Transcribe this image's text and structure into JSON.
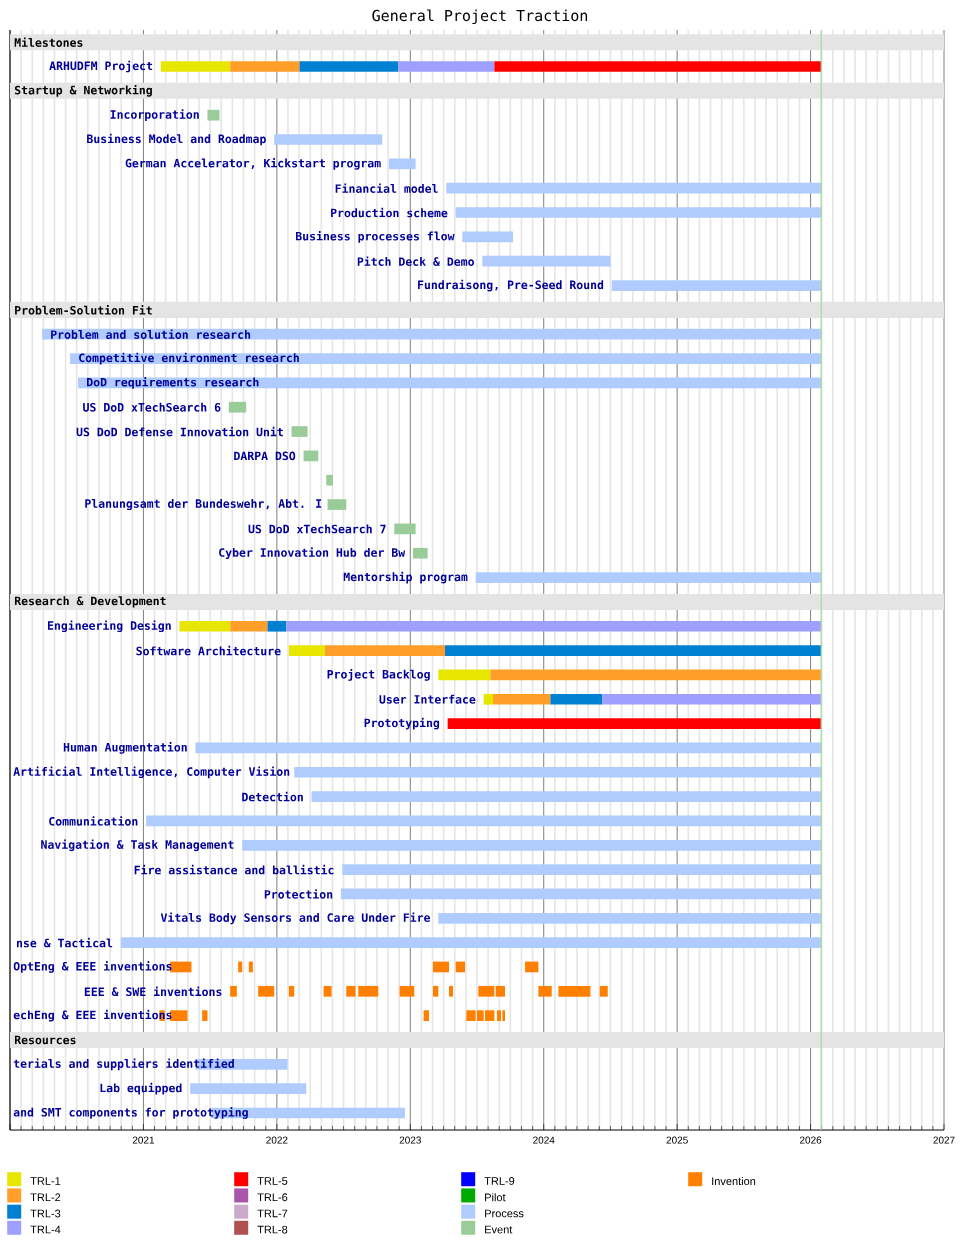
{
  "chart_data": {
    "type": "bar",
    "orientation": "horizontal",
    "title": "General Project Traction",
    "categories": [
      "Milestones",
      "ARHUDFM Project",
      "Startup & Networking",
      "Incorporation",
      "Business Model and Roadmap",
      "German Accelerator, Kickstart program",
      "Financial model",
      "Production scheme",
      "Business processes flow",
      "Pitch Deck & Demo",
      "Fundraisong, Pre-Seed Round",
      "Problem-Solution Fit",
      "Problem and solution research",
      "Competitive environment research",
      "DoD requirements research",
      "US DoD xTechSearch 6",
      "US DoD Defense Innovation Unit",
      "DARPA DSO",
      null,
      "Planungsamt der Bundeswehr, Abt. I",
      "US DoD xTechSearch 7",
      "Cyber Innovation Hub der Bw",
      "Mentorship program",
      "Research & Development",
      "Engineering Design",
      "Software Architecture",
      "Project Backlog",
      "User Interface",
      "Prototyping",
      "Human Augmentation",
      "Artificial Intelligence, Computer Vision",
      "Detection",
      "Communication",
      "Navigation & Task Management",
      "Fire assistance and ballistic",
      "Protection",
      "Vitals Body Sensors and Care Under Fire",
      "nse & Tactical",
      "OptEng & EEE inventions",
      "EEE & SWE inventions",
      "echEng & EEE inventions",
      "Resources",
      "terials and suppliers identified",
      "Lab equipped",
      "and SMT components for prototyping"
    ],
    "series": [
      {
        "name": "TRL-1",
        "color": "#e6e600",
        "values": [
          null,
          0.52,
          null,
          null,
          null,
          null,
          null,
          null,
          null,
          null,
          null,
          null,
          null,
          null,
          null,
          null,
          null,
          null,
          null,
          null,
          null,
          null,
          null,
          null,
          0.38,
          0.27,
          0.39,
          0.07,
          null,
          null,
          null,
          null,
          null,
          null,
          null,
          null,
          null,
          null,
          null,
          null,
          null,
          null,
          null,
          null,
          null
        ],
        "base": [
          null,
          2021.13,
          null,
          null,
          null,
          null,
          null,
          null,
          null,
          null,
          null,
          null,
          null,
          null,
          null,
          null,
          null,
          null,
          null,
          null,
          null,
          null,
          null,
          null,
          2021.27,
          2022.09,
          2023.21,
          2023.55,
          null,
          null,
          null,
          null,
          null,
          null,
          null,
          null,
          null,
          null,
          null,
          null,
          null,
          null,
          null,
          null,
          null
        ]
      },
      {
        "name": "TRL-2",
        "color": "#ff9f2a",
        "values": [
          null,
          0.52,
          null,
          null,
          null,
          null,
          null,
          null,
          null,
          null,
          null,
          null,
          null,
          null,
          null,
          null,
          null,
          null,
          null,
          null,
          null,
          null,
          null,
          null,
          0.28,
          0.9,
          2.48,
          0.43,
          null,
          null,
          null,
          null,
          null,
          null,
          null,
          null,
          null,
          null,
          null,
          null,
          null,
          null,
          null,
          null,
          null
        ],
        "base": [
          null,
          2021.65,
          null,
          null,
          null,
          null,
          null,
          null,
          null,
          null,
          null,
          null,
          null,
          null,
          null,
          null,
          null,
          null,
          null,
          null,
          null,
          null,
          null,
          null,
          2021.65,
          2022.36,
          2023.6,
          2023.62,
          null,
          null,
          null,
          null,
          null,
          null,
          null,
          null,
          null,
          null,
          null,
          null,
          null,
          null,
          null,
          null,
          null
        ]
      },
      {
        "name": "TRL-3",
        "color": "#0080d0",
        "values": [
          null,
          0.74,
          null,
          null,
          null,
          null,
          null,
          null,
          null,
          null,
          null,
          null,
          null,
          null,
          null,
          null,
          null,
          null,
          null,
          null,
          null,
          null,
          null,
          null,
          0.14,
          2.82,
          null,
          0.39,
          null,
          null,
          null,
          null,
          null,
          null,
          null,
          null,
          null,
          null,
          null,
          null,
          null,
          null,
          null,
          null,
          null
        ],
        "base": [
          null,
          2022.17,
          null,
          null,
          null,
          null,
          null,
          null,
          null,
          null,
          null,
          null,
          null,
          null,
          null,
          null,
          null,
          null,
          null,
          null,
          null,
          null,
          null,
          null,
          2021.93,
          2023.26,
          null,
          2024.05,
          null,
          null,
          null,
          null,
          null,
          null,
          null,
          null,
          null,
          null,
          null,
          null,
          null,
          null,
          null,
          null,
          null
        ]
      },
      {
        "name": "TRL-4",
        "color": "#9f9fff",
        "values": [
          null,
          0.72,
          null,
          null,
          null,
          null,
          null,
          null,
          null,
          null,
          null,
          null,
          null,
          null,
          null,
          null,
          null,
          null,
          null,
          null,
          null,
          null,
          null,
          null,
          4.01,
          null,
          null,
          1.64,
          null,
          null,
          null,
          null,
          null,
          null,
          null,
          null,
          null,
          null,
          null,
          null,
          null,
          null,
          null,
          null,
          null
        ],
        "base": [
          null,
          2022.91,
          null,
          null,
          null,
          null,
          null,
          null,
          null,
          null,
          null,
          null,
          null,
          null,
          null,
          null,
          null,
          null,
          null,
          null,
          null,
          null,
          null,
          null,
          2022.07,
          null,
          null,
          2024.44,
          null,
          null,
          null,
          null,
          null,
          null,
          null,
          null,
          null,
          null,
          null,
          null,
          null,
          null,
          null,
          null,
          null
        ]
      },
      {
        "name": "TRL-5",
        "color": "#ff0000",
        "values": [
          null,
          2.45,
          null,
          null,
          null,
          null,
          null,
          null,
          null,
          null,
          null,
          null,
          null,
          null,
          null,
          null,
          null,
          null,
          null,
          null,
          null,
          null,
          null,
          null,
          null,
          null,
          null,
          null,
          2.8,
          null,
          null,
          null,
          null,
          null,
          null,
          null,
          null,
          null,
          null,
          null,
          null,
          null,
          null,
          null,
          null
        ],
        "base": [
          null,
          2023.63,
          null,
          null,
          null,
          null,
          null,
          null,
          null,
          null,
          null,
          null,
          null,
          null,
          null,
          null,
          null,
          null,
          null,
          null,
          null,
          null,
          null,
          null,
          null,
          null,
          null,
          null,
          2023.28,
          null,
          null,
          null,
          null,
          null,
          null,
          null,
          null,
          null,
          null,
          null,
          null,
          null,
          null,
          null,
          null
        ]
      },
      {
        "name": "TRL-6",
        "color": "#aa55aa",
        "values": [
          null,
          null,
          null,
          null,
          null,
          null,
          null,
          null,
          null,
          null,
          null,
          null,
          null,
          null,
          null,
          null,
          null,
          null,
          null,
          null,
          null,
          null,
          null,
          null,
          null,
          null,
          null,
          null,
          null,
          null,
          null,
          null,
          null,
          null,
          null,
          null,
          null,
          null,
          null,
          null,
          null,
          null,
          null,
          null,
          null
        ]
      },
      {
        "name": "TRL-7",
        "color": "#ccaacc",
        "values": [
          null,
          null,
          null,
          null,
          null,
          null,
          null,
          null,
          null,
          null,
          null,
          null,
          null,
          null,
          null,
          null,
          null,
          null,
          null,
          null,
          null,
          null,
          null,
          null,
          null,
          null,
          null,
          null,
          null,
          null,
          null,
          null,
          null,
          null,
          null,
          null,
          null,
          null,
          null,
          null,
          null,
          null,
          null,
          null,
          null
        ]
      },
      {
        "name": "TRL-8",
        "color": "#b05050",
        "values": [
          null,
          null,
          null,
          null,
          null,
          null,
          null,
          null,
          null,
          null,
          null,
          null,
          null,
          null,
          null,
          null,
          null,
          null,
          null,
          null,
          null,
          null,
          null,
          null,
          null,
          null,
          null,
          null,
          null,
          null,
          null,
          null,
          null,
          null,
          null,
          null,
          null,
          null,
          null,
          null,
          null,
          null,
          null,
          null,
          null
        ]
      },
      {
        "name": "TRL-9",
        "color": "#0000ff",
        "values": [
          null,
          null,
          null,
          null,
          null,
          null,
          null,
          null,
          null,
          null,
          null,
          null,
          null,
          null,
          null,
          null,
          null,
          null,
          null,
          null,
          null,
          null,
          null,
          null,
          null,
          null,
          null,
          null,
          null,
          null,
          null,
          null,
          null,
          null,
          null,
          null,
          null,
          null,
          null,
          null,
          null,
          null,
          null,
          null,
          null
        ]
      },
      {
        "name": "Pilot",
        "color": "#00aa00",
        "values": [
          null,
          null,
          null,
          null,
          null,
          null,
          null,
          null,
          null,
          null,
          null,
          null,
          null,
          null,
          null,
          null,
          null,
          null,
          null,
          null,
          null,
          null,
          null,
          null,
          null,
          null,
          null,
          null,
          null,
          null,
          null,
          null,
          null,
          null,
          null,
          null,
          null,
          null,
          null,
          null,
          null,
          null,
          null,
          null,
          null
        ]
      },
      {
        "name": "Process",
        "color": "#b0ccff",
        "values": [
          null,
          null,
          null,
          null,
          0.81,
          0.2,
          2.81,
          2.74,
          0.38,
          0.96,
          1.57,
          null,
          5.84,
          5.63,
          5.57,
          null,
          null,
          null,
          null,
          null,
          null,
          null,
          2.59,
          null,
          null,
          null,
          null,
          null,
          null,
          4.69,
          3.95,
          3.82,
          5.06,
          4.34,
          3.59,
          3.6,
          2.87,
          5.25,
          null,
          null,
          null,
          null,
          0.69,
          0.87,
          1.45
        ],
        "base": [
          null,
          null,
          null,
          null,
          2021.98,
          2022.84,
          2023.27,
          2023.34,
          2023.39,
          2023.54,
          2024.51,
          null,
          2020.24,
          2020.45,
          2020.51,
          null,
          null,
          null,
          null,
          null,
          null,
          null,
          2023.49,
          null,
          null,
          null,
          null,
          null,
          null,
          2021.39,
          2022.13,
          2022.26,
          2021.02,
          2021.74,
          2022.49,
          2022.48,
          2023.21,
          2020.83,
          null,
          null,
          null,
          null,
          2021.39,
          2021.35,
          2021.51
        ]
      },
      {
        "name": "Event",
        "color": "#99cc99",
        "values": [
          null,
          null,
          null,
          0.09,
          null,
          null,
          null,
          null,
          null,
          null,
          null,
          null,
          null,
          null,
          null,
          0.13,
          0.12,
          0.11,
          0.05,
          0.14,
          0.16,
          0.11,
          null,
          null,
          null,
          null,
          null,
          null,
          null,
          null,
          null,
          null,
          null,
          null,
          null,
          null,
          null,
          null,
          null,
          null,
          null,
          null,
          null,
          null,
          null
        ],
        "base": [
          null,
          null,
          null,
          2021.48,
          null,
          null,
          null,
          null,
          null,
          null,
          null,
          null,
          null,
          null,
          null,
          2021.64,
          2022.11,
          2022.2,
          2022.37,
          2022.38,
          2022.88,
          2023.02,
          null,
          null,
          null,
          null,
          null,
          null,
          null,
          null,
          null,
          null,
          null,
          null,
          null,
          null,
          null,
          null,
          null,
          null,
          null,
          null,
          null,
          null,
          null
        ]
      },
      {
        "name": "Invention",
        "color": "#ff8000",
        "values": [
          null,
          null,
          null,
          null,
          null,
          null,
          null,
          null,
          null,
          null,
          null,
          null,
          null,
          null,
          null,
          null,
          null,
          null,
          null,
          null,
          null,
          null,
          null,
          null,
          null,
          null,
          null,
          null,
          null,
          null,
          null,
          null,
          null,
          null,
          null,
          null,
          null,
          null,
          0.16,
          0.05,
          0.04,
          null,
          null,
          null,
          null
        ],
        "base": [
          null,
          null,
          null,
          null,
          null,
          null,
          null,
          null,
          null,
          null,
          null,
          null,
          null,
          null,
          null,
          null,
          null,
          null,
          null,
          null,
          null,
          null,
          null,
          null,
          null,
          null,
          null,
          null,
          null,
          null,
          null,
          null,
          null,
          null,
          null,
          null,
          null,
          null,
          2021.2,
          2021.65,
          2021.12,
          null,
          null,
          null,
          null
        ]
      },
      {
        "color": "#ff8000",
        "values": [
          null,
          null,
          null,
          null,
          null,
          null,
          null,
          null,
          null,
          null,
          null,
          null,
          null,
          null,
          null,
          null,
          null,
          null,
          null,
          null,
          null,
          null,
          null,
          null,
          null,
          null,
          null,
          null,
          null,
          null,
          null,
          null,
          null,
          null,
          null,
          null,
          null,
          null,
          0.03,
          0.12,
          0.13,
          null,
          null,
          null,
          null
        ],
        "base": [
          null,
          null,
          null,
          null,
          null,
          null,
          null,
          null,
          null,
          null,
          null,
          null,
          null,
          null,
          null,
          null,
          null,
          null,
          null,
          null,
          null,
          null,
          null,
          null,
          null,
          null,
          null,
          null,
          null,
          null,
          null,
          null,
          null,
          null,
          null,
          null,
          null,
          null,
          2021.71,
          2021.86,
          2021.2,
          null,
          null,
          null,
          null
        ]
      },
      {
        "color": "#ff8000",
        "values": [
          null,
          null,
          null,
          null,
          null,
          null,
          null,
          null,
          null,
          null,
          null,
          null,
          null,
          null,
          null,
          null,
          null,
          null,
          null,
          null,
          null,
          null,
          null,
          null,
          null,
          null,
          null,
          null,
          null,
          null,
          null,
          null,
          null,
          null,
          null,
          null,
          null,
          null,
          0.03,
          0.04,
          0.04,
          null,
          null,
          null,
          null
        ],
        "base": [
          null,
          null,
          null,
          null,
          null,
          null,
          null,
          null,
          null,
          null,
          null,
          null,
          null,
          null,
          null,
          null,
          null,
          null,
          null,
          null,
          null,
          null,
          null,
          null,
          null,
          null,
          null,
          null,
          null,
          null,
          null,
          null,
          null,
          null,
          null,
          null,
          null,
          null,
          2021.79,
          2022.09,
          2021.44,
          null,
          null,
          null,
          null
        ]
      },
      {
        "color": "#ff8000",
        "values": [
          null,
          null,
          null,
          null,
          null,
          null,
          null,
          null,
          null,
          null,
          null,
          null,
          null,
          null,
          null,
          null,
          null,
          null,
          null,
          null,
          null,
          null,
          null,
          null,
          null,
          null,
          null,
          null,
          null,
          null,
          null,
          null,
          null,
          null,
          null,
          null,
          null,
          null,
          0.12,
          0.06,
          0.04,
          null,
          null,
          null,
          null
        ],
        "base": [
          null,
          null,
          null,
          null,
          null,
          null,
          null,
          null,
          null,
          null,
          null,
          null,
          null,
          null,
          null,
          null,
          null,
          null,
          null,
          null,
          null,
          null,
          null,
          null,
          null,
          null,
          null,
          null,
          null,
          null,
          null,
          null,
          null,
          null,
          null,
          null,
          null,
          null,
          2023.17,
          2022.35,
          2023.1,
          null,
          null,
          null,
          null
        ]
      },
      {
        "color": "#ff8000",
        "values": [
          null,
          null,
          null,
          null,
          null,
          null,
          null,
          null,
          null,
          null,
          null,
          null,
          null,
          null,
          null,
          null,
          null,
          null,
          null,
          null,
          null,
          null,
          null,
          null,
          null,
          null,
          null,
          null,
          null,
          null,
          null,
          null,
          null,
          null,
          null,
          null,
          null,
          null,
          0.07,
          0.07,
          0.07,
          null,
          null,
          null,
          null
        ],
        "base": [
          null,
          null,
          null,
          null,
          null,
          null,
          null,
          null,
          null,
          null,
          null,
          null,
          null,
          null,
          null,
          null,
          null,
          null,
          null,
          null,
          null,
          null,
          null,
          null,
          null,
          null,
          null,
          null,
          null,
          null,
          null,
          null,
          null,
          null,
          null,
          null,
          null,
          null,
          2023.34,
          2022.52,
          2023.42,
          null,
          null,
          null,
          null
        ]
      },
      {
        "color": "#ff8000",
        "values": [
          null,
          null,
          null,
          null,
          null,
          null,
          null,
          null,
          null,
          null,
          null,
          null,
          null,
          null,
          null,
          null,
          null,
          null,
          null,
          null,
          null,
          null,
          null,
          null,
          null,
          null,
          null,
          null,
          null,
          null,
          null,
          null,
          null,
          null,
          null,
          null,
          null,
          null,
          0.1,
          0.15,
          0.05,
          null,
          null,
          null,
          null
        ],
        "base": [
          null,
          null,
          null,
          null,
          null,
          null,
          null,
          null,
          null,
          null,
          null,
          null,
          null,
          null,
          null,
          null,
          null,
          null,
          null,
          null,
          null,
          null,
          null,
          null,
          null,
          null,
          null,
          null,
          null,
          null,
          null,
          null,
          null,
          null,
          null,
          null,
          null,
          null,
          2023.86,
          2022.61,
          2023.5,
          null,
          null,
          null,
          null
        ]
      },
      {
        "color": "#ff8000",
        "values": [
          null,
          null,
          null,
          null,
          null,
          null,
          null,
          null,
          null,
          null,
          null,
          null,
          null,
          null,
          null,
          null,
          null,
          null,
          null,
          null,
          null,
          null,
          null,
          null,
          null,
          null,
          null,
          null,
          null,
          null,
          null,
          null,
          null,
          null,
          null,
          null,
          null,
          null,
          null,
          0.11,
          0.07,
          null,
          null,
          null,
          null
        ],
        "base": [
          null,
          null,
          null,
          null,
          null,
          null,
          null,
          null,
          null,
          null,
          null,
          null,
          null,
          null,
          null,
          null,
          null,
          null,
          null,
          null,
          null,
          null,
          null,
          null,
          null,
          null,
          null,
          null,
          null,
          null,
          null,
          null,
          null,
          null,
          null,
          null,
          null,
          null,
          null,
          2022.92,
          2023.56,
          null,
          null,
          null,
          null
        ]
      },
      {
        "color": "#ff8000",
        "values": [
          null,
          null,
          null,
          null,
          null,
          null,
          null,
          null,
          null,
          null,
          null,
          null,
          null,
          null,
          null,
          null,
          null,
          null,
          null,
          null,
          null,
          null,
          null,
          null,
          null,
          null,
          null,
          null,
          null,
          null,
          null,
          null,
          null,
          null,
          null,
          null,
          null,
          null,
          null,
          0.04,
          0.03,
          null,
          null,
          null,
          null
        ],
        "base": [
          null,
          null,
          null,
          null,
          null,
          null,
          null,
          null,
          null,
          null,
          null,
          null,
          null,
          null,
          null,
          null,
          null,
          null,
          null,
          null,
          null,
          null,
          null,
          null,
          null,
          null,
          null,
          null,
          null,
          null,
          null,
          null,
          null,
          null,
          null,
          null,
          null,
          null,
          null,
          2023.17,
          2023.65,
          null,
          null,
          null,
          null
        ]
      },
      {
        "color": "#ff8000",
        "values": [
          null,
          null,
          null,
          null,
          null,
          null,
          null,
          null,
          null,
          null,
          null,
          null,
          null,
          null,
          null,
          null,
          null,
          null,
          null,
          null,
          null,
          null,
          null,
          null,
          null,
          null,
          null,
          null,
          null,
          null,
          null,
          null,
          null,
          null,
          null,
          null,
          null,
          null,
          null,
          0.03,
          0.02,
          null,
          null,
          null,
          null
        ],
        "base": [
          null,
          null,
          null,
          null,
          null,
          null,
          null,
          null,
          null,
          null,
          null,
          null,
          null,
          null,
          null,
          null,
          null,
          null,
          null,
          null,
          null,
          null,
          null,
          null,
          null,
          null,
          null,
          null,
          null,
          null,
          null,
          null,
          null,
          null,
          null,
          null,
          null,
          null,
          null,
          2023.29,
          2023.69,
          null,
          null,
          null,
          null
        ]
      },
      {
        "color": "#ff8000",
        "values": [
          null,
          null,
          null,
          null,
          null,
          null,
          null,
          null,
          null,
          null,
          null,
          null,
          null,
          null,
          null,
          null,
          null,
          null,
          null,
          null,
          null,
          null,
          null,
          null,
          null,
          null,
          null,
          null,
          null,
          null,
          null,
          null,
          null,
          null,
          null,
          null,
          null,
          null,
          null,
          0.12,
          null,
          null,
          null,
          null,
          null
        ],
        "base": [
          null,
          null,
          null,
          null,
          null,
          null,
          null,
          null,
          null,
          null,
          null,
          null,
          null,
          null,
          null,
          null,
          null,
          null,
          null,
          null,
          null,
          null,
          null,
          null,
          null,
          null,
          null,
          null,
          null,
          null,
          null,
          null,
          null,
          null,
          null,
          null,
          null,
          null,
          null,
          2023.51,
          null,
          null,
          null,
          null,
          null
        ]
      },
      {
        "color": "#ff8000",
        "values": [
          null,
          null,
          null,
          null,
          null,
          null,
          null,
          null,
          null,
          null,
          null,
          null,
          null,
          null,
          null,
          null,
          null,
          null,
          null,
          null,
          null,
          null,
          null,
          null,
          null,
          null,
          null,
          null,
          null,
          null,
          null,
          null,
          null,
          null,
          null,
          null,
          null,
          null,
          null,
          0.07,
          null,
          null,
          null,
          null,
          null
        ],
        "base": [
          null,
          null,
          null,
          null,
          null,
          null,
          null,
          null,
          null,
          null,
          null,
          null,
          null,
          null,
          null,
          null,
          null,
          null,
          null,
          null,
          null,
          null,
          null,
          null,
          null,
          null,
          null,
          null,
          null,
          null,
          null,
          null,
          null,
          null,
          null,
          null,
          null,
          null,
          null,
          2023.64,
          null,
          null,
          null,
          null,
          null
        ]
      },
      {
        "color": "#ff8000",
        "values": [
          null,
          null,
          null,
          null,
          null,
          null,
          null,
          null,
          null,
          null,
          null,
          null,
          null,
          null,
          null,
          null,
          null,
          null,
          null,
          null,
          null,
          null,
          null,
          null,
          null,
          null,
          null,
          null,
          null,
          null,
          null,
          null,
          null,
          null,
          null,
          null,
          null,
          null,
          null,
          0.1,
          null,
          null,
          null,
          null,
          null
        ],
        "base": [
          null,
          null,
          null,
          null,
          null,
          null,
          null,
          null,
          null,
          null,
          null,
          null,
          null,
          null,
          null,
          null,
          null,
          null,
          null,
          null,
          null,
          null,
          null,
          null,
          null,
          null,
          null,
          null,
          null,
          null,
          null,
          null,
          null,
          null,
          null,
          null,
          null,
          null,
          null,
          2023.96,
          null,
          null,
          null,
          null,
          null
        ]
      },
      {
        "color": "#ff8000",
        "values": [
          null,
          null,
          null,
          null,
          null,
          null,
          null,
          null,
          null,
          null,
          null,
          null,
          null,
          null,
          null,
          null,
          null,
          null,
          null,
          null,
          null,
          null,
          null,
          null,
          null,
          null,
          null,
          null,
          null,
          null,
          null,
          null,
          null,
          null,
          null,
          null,
          null,
          null,
          null,
          0.24,
          null,
          null,
          null,
          null,
          null
        ],
        "base": [
          null,
          null,
          null,
          null,
          null,
          null,
          null,
          null,
          null,
          null,
          null,
          null,
          null,
          null,
          null,
          null,
          null,
          null,
          null,
          null,
          null,
          null,
          null,
          null,
          null,
          null,
          null,
          null,
          null,
          null,
          null,
          null,
          null,
          null,
          null,
          null,
          null,
          null,
          null,
          2024.11,
          null,
          null,
          null,
          null,
          null
        ]
      },
      {
        "color": "#ff8000",
        "values": [
          null,
          null,
          null,
          null,
          null,
          null,
          null,
          null,
          null,
          null,
          null,
          null,
          null,
          null,
          null,
          null,
          null,
          null,
          null,
          null,
          null,
          null,
          null,
          null,
          null,
          null,
          null,
          null,
          null,
          null,
          null,
          null,
          null,
          null,
          null,
          null,
          null,
          null,
          null,
          0.06,
          null,
          null,
          null,
          null,
          null
        ],
        "base": [
          null,
          null,
          null,
          null,
          null,
          null,
          null,
          null,
          null,
          null,
          null,
          null,
          null,
          null,
          null,
          null,
          null,
          null,
          null,
          null,
          null,
          null,
          null,
          null,
          null,
          null,
          null,
          null,
          null,
          null,
          null,
          null,
          null,
          null,
          null,
          null,
          null,
          null,
          null,
          2024.42,
          null,
          null,
          null,
          null,
          null
        ]
      }
    ],
    "xlim": [
      2020,
      2027
    ],
    "xticks": [
      {
        "value": 2020,
        "label": null
      },
      2021,
      2022,
      2023,
      2024,
      2025,
      2026,
      2027
    ],
    "grid": "x",
    "legend": "bottom",
    "bands": [
      {
        "axis": "y",
        "from": "Milestones",
        "to": "Milestones",
        "color": "#e4e4e4"
      },
      {
        "axis": "y",
        "from": "Startup & Networking",
        "to": "Startup & Networking",
        "color": "#e4e4e4"
      },
      {
        "axis": "y",
        "from": "Problem-Solution Fit",
        "to": "Problem-Solution Fit",
        "color": "#e4e4e4"
      },
      {
        "axis": "y",
        "from": "Research & Development",
        "to": "Research & Development",
        "color": "#e4e4e4"
      },
      {
        "axis": "y",
        "from": "Resources",
        "to": "Resources",
        "color": "#e4e4e4"
      }
    ],
    "ref_lines": [
      {
        "axis": "x",
        "value": 2026.08,
        "color": "#a8dca8"
      }
    ]
  }
}
